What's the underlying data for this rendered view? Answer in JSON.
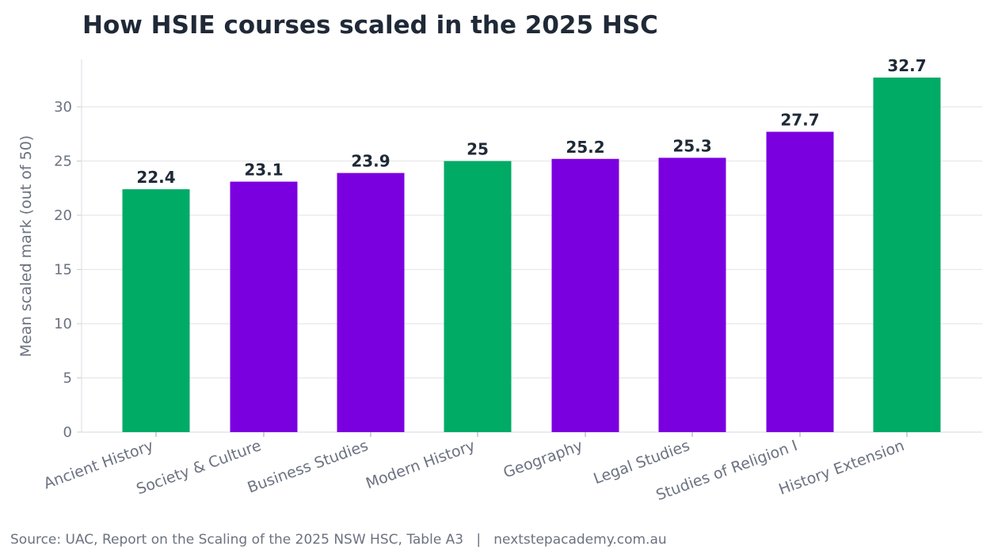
{
  "chart_data": {
    "type": "bar",
    "title": "How HSIE courses scaled in the 2025 HSC",
    "xlabel": "",
    "ylabel": "Mean scaled mark (out of 50)",
    "ylim": [
      0,
      33.5
    ],
    "yticks": [
      0,
      5,
      10,
      15,
      20,
      25,
      30
    ],
    "grid": "horizontal",
    "categories": [
      "Ancient History",
      "Society & Culture",
      "Business Studies",
      "Modern History",
      "Geography",
      "Legal Studies",
      "Studies of Religion I",
      "History Extension"
    ],
    "values": [
      22.4,
      23.1,
      23.9,
      25,
      25.2,
      25.3,
      27.7,
      32.7
    ],
    "value_labels": [
      "22.4",
      "23.1",
      "23.9",
      "25",
      "25.2",
      "25.3",
      "27.7",
      "32.7"
    ],
    "bar_colors": [
      "#00ab66",
      "#7b00e0",
      "#7b00e0",
      "#00ab66",
      "#7b00e0",
      "#7b00e0",
      "#7b00e0",
      "#00ab66"
    ]
  },
  "source": "Source: UAC, Report on the Scaling of the 2025 NSW HSC, Table A3   |   nextstepacademy.com.au"
}
